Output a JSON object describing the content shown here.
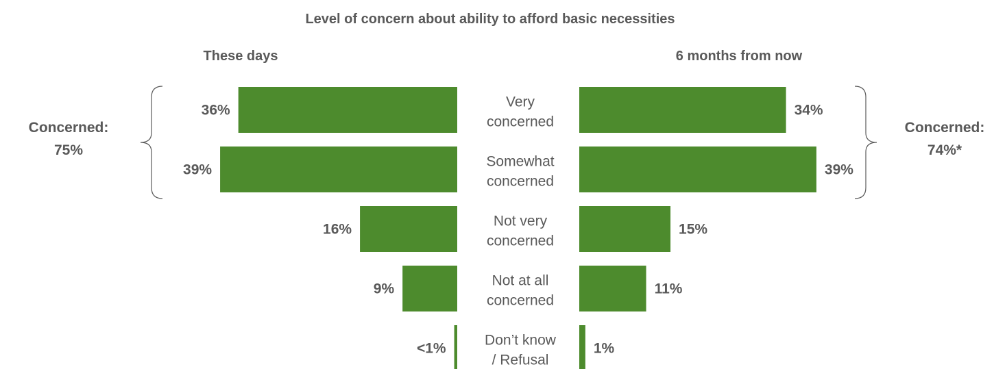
{
  "chart_data": {
    "type": "bar",
    "title": "Level of concern about ability to afford basic necessities",
    "categories": [
      [
        "Very",
        "concerned"
      ],
      [
        "Somewhat",
        "concerned"
      ],
      [
        "Not very",
        "concerned"
      ],
      [
        "Not at all",
        "concerned"
      ],
      [
        "Don’t know",
        "/ Refusal"
      ]
    ],
    "series": [
      {
        "name": "These days",
        "values": [
          36,
          39,
          16,
          9,
          0.5
        ],
        "labels": [
          "36%",
          "39%",
          "16%",
          "9%",
          "<1%"
        ]
      },
      {
        "name": "6 months from now",
        "values": [
          34,
          39,
          15,
          11,
          1
        ],
        "labels": [
          "34%",
          "39%",
          "15%",
          "11%",
          "1%"
        ]
      }
    ],
    "groups": [
      {
        "label": "Concerned:",
        "value": "75%"
      },
      {
        "label": "Concerned:",
        "value": "74%*"
      }
    ],
    "bar_color": "#4d8b2d",
    "text_color": "#595959"
  }
}
